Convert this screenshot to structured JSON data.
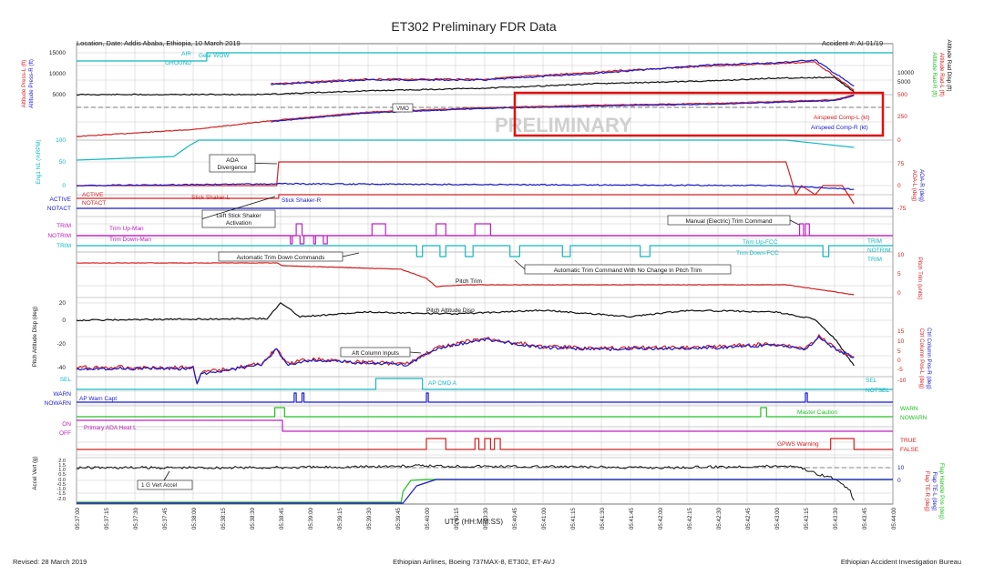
{
  "title": "ET302 Preliminary FDR Data",
  "header": {
    "location": "Location, Date: Addis Ababa, Ethiopia, 10 March 2019",
    "accident": "Accident #: AI-01/19"
  },
  "footer": {
    "revised": "Revised: 28 March 2019",
    "aircraft": "Ethiopian Airlines, Boeing 737MAX-8, ET302, ET-AVJ",
    "bureau": "Ethiopian Accident Investigation Bureau"
  },
  "watermark": "PRELIMINARY",
  "colors": {
    "red": "#d42020",
    "blue": "#1a1acc",
    "cyan": "#10b8c0",
    "magenta": "#c020c0",
    "green": "#20c020",
    "black": "#111111",
    "grid": "#c8c8c8",
    "highlight": "#e01010"
  },
  "xaxis": {
    "label": "UTC (HH:MM:SS)",
    "ticks": [
      "05:37:00",
      "05:37:15",
      "05:37:30",
      "05:37:45",
      "05:38:00",
      "05:38:15",
      "05:38:30",
      "05:38:45",
      "05:39:00",
      "05:39:15",
      "05:39:30",
      "05:39:45",
      "05:40:00",
      "05:40:15",
      "05:40:30",
      "05:40:45",
      "05:41:00",
      "05:41:15",
      "05:41:30",
      "05:41:45",
      "05:42:00",
      "05:42:15",
      "05:42:30",
      "05:42:45",
      "05:43:00",
      "05:43:15",
      "05:43:30",
      "05:43:45",
      "05:44:00"
    ]
  },
  "left_axes": [
    {
      "label": "Altitude Press-L (ft)",
      "color": "red"
    },
    {
      "label": "Altitude Press-R (ft)",
      "color": "blue"
    },
    {
      "label": "Eng1 N1 (%RPM)",
      "color": "cyan"
    },
    {
      "label": "Pitch Attitude Disp (deg)",
      "color": "black"
    },
    {
      "label": "Accel Vert (g)",
      "color": "black"
    }
  ],
  "right_axes": [
    {
      "label": "Altitude Rad-L (ft)",
      "color": "red"
    },
    {
      "label": "Altitude Rad-R (ft)",
      "color": "green"
    },
    {
      "label": "Altitude Rad Disp (ft)",
      "color": "black"
    },
    {
      "label": "AOA-L (deg)",
      "color": "red"
    },
    {
      "label": "AOA-R (deg)",
      "color": "blue"
    },
    {
      "label": "Pitch Trim (units)",
      "color": "red"
    },
    {
      "label": "Ctrl Column Pos-L (deg)",
      "color": "red"
    },
    {
      "label": "Ctrl Column Pos-R (deg)",
      "color": "blue"
    },
    {
      "label": "Flap Handle Pos (deg)",
      "color": "green"
    },
    {
      "label": "Flap TE-L (deg)",
      "color": "blue"
    },
    {
      "label": "Flap TE-R (deg)",
      "color": "red"
    }
  ],
  "left_ticks": {
    "altitude": [
      "15000",
      "10000",
      "5000"
    ],
    "n1": [
      "100",
      "50",
      "0"
    ],
    "pitch_att": [
      "20",
      "0",
      "-20",
      "-40"
    ],
    "accel": [
      "2.0",
      "1.5",
      "1.0",
      "0.5",
      "0.0",
      "-0.5",
      "-1.0",
      "-1.5",
      "-2.0"
    ]
  },
  "right_ticks": {
    "rad_alt": [
      "10000",
      "5000"
    ],
    "airspeed": [
      "500",
      "250",
      "0"
    ],
    "aoa": [
      "75",
      "0",
      "-75"
    ],
    "pitch_trim": [
      "10",
      "5",
      "0"
    ],
    "ctrl_col": [
      "15",
      "10",
      "5",
      "0",
      "-5",
      "-10"
    ],
    "flap": [
      "10",
      "0"
    ]
  },
  "discrete_labels": {
    "air": "AIR",
    "ground": "GROUND",
    "gear_wow": "Gear WOW",
    "active": "ACTIVE",
    "notact": "NOTACT",
    "stick_shaker_l": "Stick Shaker-L",
    "stick_shaker_r": "Stick Shaker-R",
    "trim": "TRIM",
    "notrim": "NOTRIM",
    "trim_up_man": "Trim Up-Man",
    "trim_down_man": "Trim Down-Man",
    "trim_up_fcc": "Trim Up-FCC",
    "trim_down_fcc": "Trim Down-FCC",
    "ap_cmd_a": "AP CMD A",
    "sel": "SEL",
    "notsel": "NOTSEL",
    "warn": "WARN",
    "nowarn": "NOWARN",
    "ap_warn_capt": "AP Warn Capt",
    "master_caution": "Master Caution",
    "on": "ON",
    "off": "OFF",
    "primary_ada_heat": "Primary ADA Heat L",
    "true": "TRUE",
    "false": "FALSE",
    "gpws_warning": "GPWS Warning",
    "vmo": "VMO",
    "airspeed_l": "Airspeed Comp-L (kt)",
    "airspeed_r": "Airspeed Comp-R (kt)",
    "pitch_trim": "Pitch Trim",
    "pitch_att_disp": "Pitch Attitude Disp",
    "one_g": "1 G Vert Accel"
  },
  "callouts": {
    "aoa_div": "AOA\nDivergence",
    "left_stick": "Left Stick Shaker\nActivation",
    "auto_trim_down": "Automatic Trim Down Commands",
    "auto_trim_nochange": "Automatic Trim Command With No Change In Pitch Trim",
    "manual_trim": "Manual (Electric) Trim Command",
    "aft_column": "Aft Column Inputs"
  },
  "chart_data": {
    "type": "line",
    "x_unit": "UTC",
    "series": [
      {
        "name": "Altitude Press-L (ft)",
        "x": [
          "05:38:40",
          "05:39:30",
          "05:40:30",
          "05:41:30",
          "05:42:30",
          "05:43:00",
          "05:43:20",
          "05:43:40"
        ],
        "y": [
          7600,
          8700,
          8700,
          10500,
          11900,
          12400,
          12800,
          6000
        ]
      },
      {
        "name": "Altitude Press-R (ft)",
        "x": [
          "05:38:40",
          "05:39:30",
          "05:40:30",
          "05:41:30",
          "05:42:30",
          "05:43:00",
          "05:43:20",
          "05:43:40"
        ],
        "y": [
          7400,
          8500,
          8500,
          10200,
          12200,
          12600,
          13300,
          7000
        ]
      },
      {
        "name": "Altitude Rad Disp (ft)",
        "x": [
          "05:37:00",
          "05:38:35",
          "05:39:30",
          "05:40:30",
          "05:41:30",
          "05:42:30",
          "05:43:00",
          "05:43:30",
          "05:43:40"
        ],
        "y": [
          0,
          50,
          1300,
          2200,
          3800,
          4800,
          5700,
          5900,
          900
        ]
      },
      {
        "name": "Airspeed Comp-L (kt)",
        "x": [
          "05:37:00",
          "05:38:00",
          "05:38:40",
          "05:39:30",
          "05:40:30",
          "05:41:30",
          "05:42:30",
          "05:43:30",
          "05:43:40"
        ],
        "y": [
          0,
          80,
          180,
          280,
          330,
          360,
          380,
          420,
          480
        ]
      },
      {
        "name": "Airspeed Comp-R (kt)",
        "x": [
          "05:38:40",
          "05:39:30",
          "05:40:30",
          "05:41:30",
          "05:42:30",
          "05:43:30",
          "05:43:40"
        ],
        "y": [
          170,
          270,
          320,
          350,
          370,
          410,
          470
        ]
      },
      {
        "name": "Eng1 N1 (%RPM)",
        "x": [
          "05:37:00",
          "05:37:50",
          "05:38:00",
          "05:43:00",
          "05:43:40"
        ],
        "y": [
          20,
          30,
          100,
          100,
          80
        ]
      },
      {
        "name": "AOA-L (deg)",
        "x": [
          "05:37:00",
          "05:38:43",
          "05:38:44",
          "05:43:05",
          "05:43:12",
          "05:43:40"
        ],
        "y": [
          0,
          10,
          60,
          55,
          0,
          -30
        ]
      },
      {
        "name": "AOA-R (deg)",
        "x": [
          "05:37:00",
          "05:38:45",
          "05:43:00",
          "05:43:40"
        ],
        "y": [
          0,
          2,
          0,
          -10
        ]
      },
      {
        "name": "Pitch Trim (units)",
        "x": [
          "05:37:00",
          "05:38:45",
          "05:39:45",
          "05:40:00",
          "05:40:30",
          "05:42:30",
          "05:43:30",
          "05:43:40"
        ],
        "y": [
          6,
          5.5,
          4.5,
          2.5,
          2.5,
          2.5,
          2.5,
          1
        ]
      },
      {
        "name": "Pitch Attitude Disp (deg)",
        "x": [
          "05:37:00",
          "05:38:40",
          "05:38:45",
          "05:39:30",
          "05:40:30",
          "05:41:30",
          "05:42:30",
          "05:43:20",
          "05:43:40"
        ],
        "y": [
          0,
          5,
          12,
          5,
          3,
          5,
          2,
          -5,
          -40
        ]
      },
      {
        "name": "Ctrl Column Pos-L (deg)",
        "x": [
          "05:37:00",
          "05:38:00",
          "05:38:05",
          "05:38:40",
          "05:39:00",
          "05:40:00",
          "05:40:15",
          "05:41:30",
          "05:42:30",
          "05:43:20",
          "05:43:40"
        ],
        "y": [
          0,
          0,
          -3,
          3,
          0,
          0,
          8,
          6,
          6,
          8,
          2
        ]
      },
      {
        "name": "Accel Vert (g)",
        "x": [
          "05:37:00",
          "05:38:45",
          "05:40:00",
          "05:42:00",
          "05:43:15",
          "05:43:30",
          "05:43:40"
        ],
        "y": [
          1.0,
          1.0,
          1.0,
          1.1,
          1.0,
          0.7,
          -2.0
        ]
      },
      {
        "name": "Flap TE-L (deg)",
        "x": [
          "05:37:00",
          "05:39:50",
          "05:40:00",
          "05:43:40"
        ],
        "y": [
          5,
          5,
          0,
          0
        ]
      },
      {
        "name": "Flap Handle Pos (deg)",
        "x": [
          "05:37:00",
          "05:39:50",
          "05:39:55",
          "05:43:40"
        ],
        "y": [
          5,
          5,
          0,
          0
        ]
      }
    ]
  }
}
